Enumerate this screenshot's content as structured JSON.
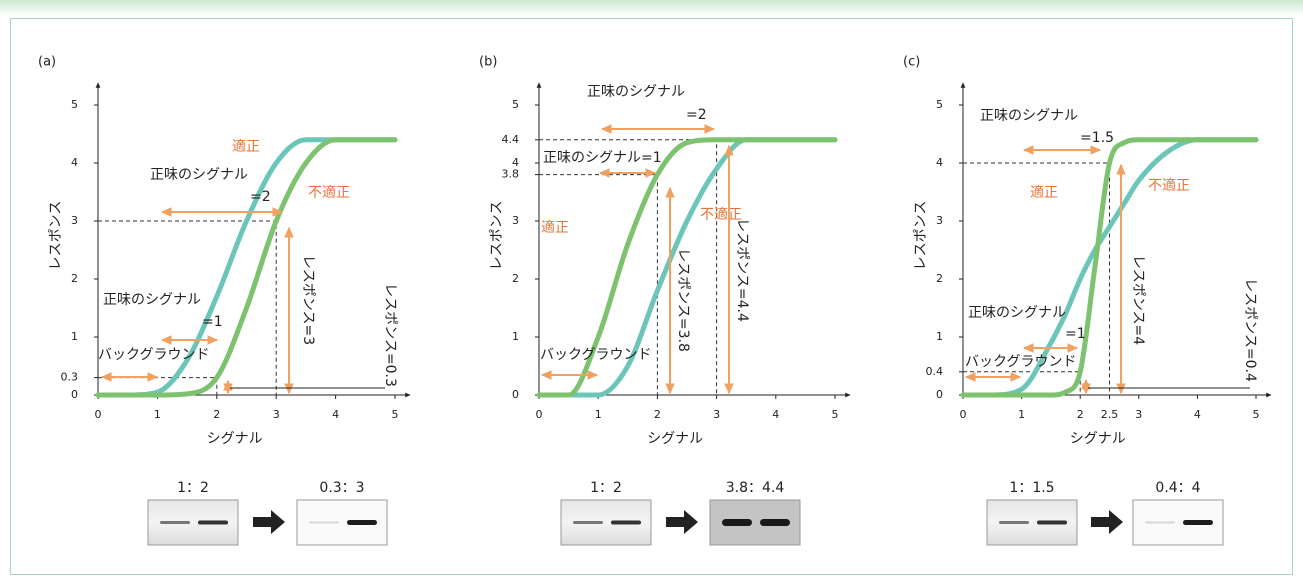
{
  "chart_data": [
    {
      "type": "line",
      "label": "(a)",
      "x_label": "シグナル",
      "y_label": "レスポンス",
      "x": [
        0,
        0.5,
        1,
        1.5,
        2,
        2.5,
        3,
        3.5,
        4,
        4.5,
        5
      ],
      "series": [
        {
          "name": "適正",
          "color": "#6cc5b9",
          "values": [
            0,
            0,
            0.05,
            0.6,
            1.7,
            3.0,
            4.0,
            4.4,
            4.4,
            4.4,
            4.4
          ]
        },
        {
          "name": "不適正",
          "color": "#7cc26f",
          "values": [
            0,
            0,
            0,
            0.02,
            0.3,
            1.5,
            3.0,
            4.0,
            4.4,
            4.4,
            4.4
          ]
        }
      ],
      "xlim": [
        0,
        5
      ],
      "ylim": [
        0,
        5
      ],
      "xticks": [
        0,
        1,
        2,
        3,
        4,
        5
      ],
      "yticks": [
        0,
        0.3,
        1,
        2,
        3,
        4,
        5
      ],
      "annotations": [
        "正味のシグナル",
        "=2",
        "正味のシグナル",
        "=1",
        "バックグラウンド",
        "レスポンス=3",
        "レスポンス=0.3"
      ],
      "blots": [
        "1：2",
        "0.3：3"
      ]
    },
    {
      "type": "line",
      "label": "(b)",
      "x_label": "シグナル",
      "y_label": "レスポンス",
      "x": [
        0,
        0.5,
        1,
        1.5,
        2,
        2.5,
        3,
        3.5,
        4,
        4.5,
        5
      ],
      "series": [
        {
          "name": "適正",
          "color": "#6cc5b9",
          "values": [
            0,
            0,
            0,
            0.5,
            1.8,
            3.0,
            3.9,
            4.4,
            4.4,
            4.4,
            4.4
          ]
        },
        {
          "name": "不適正",
          "color": "#7cc26f",
          "values": [
            0,
            0,
            1.0,
            2.6,
            3.8,
            4.35,
            4.4,
            4.4,
            4.4,
            4.4,
            4.4
          ]
        }
      ],
      "xlim": [
        0,
        5
      ],
      "ylim": [
        0,
        5
      ],
      "xticks": [
        0,
        1,
        2,
        3,
        4,
        5
      ],
      "yticks": [
        0,
        1,
        2,
        3,
        3.8,
        4,
        4.4,
        5
      ],
      "annotations": [
        "正味のシグナル",
        "=2",
        "正味のシグナル=1",
        "バックグラウンド",
        "レスポンス=3.8",
        "レスポンス=4.4"
      ],
      "blots": [
        "1：2",
        "3.8：4.4"
      ]
    },
    {
      "type": "line",
      "label": "(c)",
      "x_label": "シグナル",
      "y_label": "レスポンス",
      "x": [
        0,
        0.5,
        1,
        1.5,
        1.75,
        2,
        2.25,
        2.5,
        2.75,
        3,
        3.5,
        4,
        4.5,
        5
      ],
      "series": [
        {
          "name": "適正",
          "color": "#6cc5b9",
          "values": [
            0,
            0,
            0.1,
            0.9,
            1.4,
            2.0,
            2.5,
            2.9,
            3.3,
            3.7,
            4.2,
            4.4,
            4.4,
            4.4
          ]
        },
        {
          "name": "不適正",
          "color": "#7cc26f",
          "values": [
            0,
            0,
            0,
            0,
            0.05,
            0.4,
            2.2,
            4.0,
            4.35,
            4.4,
            4.4,
            4.4,
            4.4,
            4.4
          ]
        }
      ],
      "xlim": [
        0,
        5
      ],
      "ylim": [
        0,
        5
      ],
      "xticks": [
        0,
        1,
        2,
        2.5,
        3,
        4,
        5
      ],
      "yticks": [
        0,
        0.4,
        1,
        2,
        3,
        4,
        5
      ],
      "annotations": [
        "正味のシグナル",
        "=1.5",
        "正味のシグナル",
        "=1",
        "バックグラウンド",
        "レスポンス=4",
        "レスポンス=0.4"
      ],
      "blots": [
        "1：1.5",
        "0.4：4"
      ]
    }
  ]
}
